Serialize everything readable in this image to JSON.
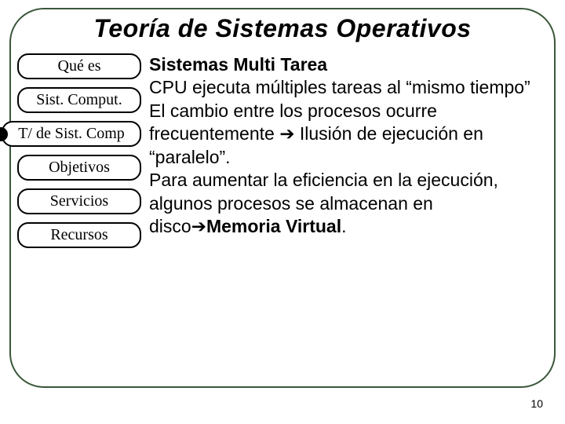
{
  "title": "Teoría de Sistemas Operativos",
  "nav": {
    "items": [
      {
        "label": "Qué es",
        "wide": false,
        "bullet": false
      },
      {
        "label": "Sist. Comput.",
        "wide": false,
        "bullet": false
      },
      {
        "label": "T/ de Sist. Comp",
        "wide": true,
        "bullet": true
      },
      {
        "label": "Objetivos",
        "wide": false,
        "bullet": false
      },
      {
        "label": "Servicios",
        "wide": false,
        "bullet": false
      },
      {
        "label": "Recursos",
        "wide": false,
        "bullet": false
      }
    ]
  },
  "content": {
    "heading": "Sistemas Multi Tarea",
    "p1_a": "CPU ejecuta múltiples tareas al “mismo tiempo”",
    "p2_a": "El cambio entre los procesos ocurre frecuentemente ",
    "arrow1": "➔",
    "p2_b": " Ilusión de ejecución en “paralelo”.",
    "p3_a": "Para aumentar la eficiencia en la ejecución, algunos procesos se almacenan en disco",
    "arrow2": "➔",
    "p3_b": "Memoria Virtual",
    "p3_c": "."
  },
  "page_number": "10",
  "colors": {
    "frame_border": "#3a573a",
    "text": "#000000",
    "background": "#ffffff"
  },
  "typography": {
    "title_fontsize": 32,
    "nav_fontsize": 20,
    "body_fontsize": 23,
    "pagenum_fontsize": 14
  }
}
